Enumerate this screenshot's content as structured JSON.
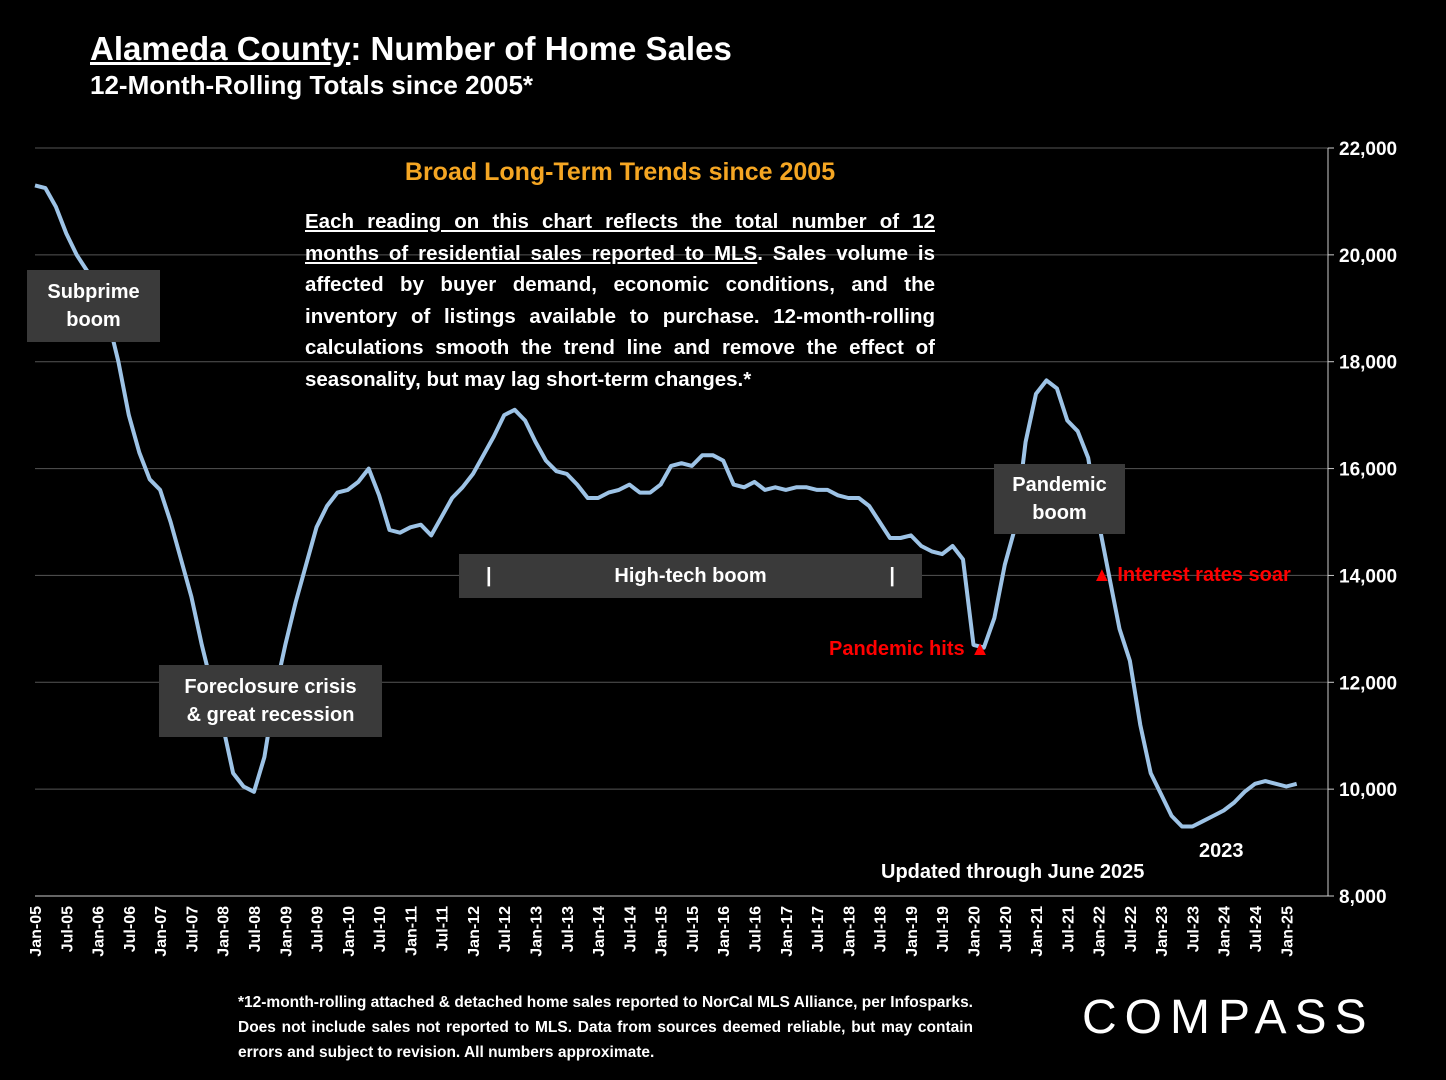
{
  "title": {
    "county": "Alameda County",
    "rest": ":  Number of Home Sales",
    "subtitle": "12-Month-Rolling Totals since 2005*"
  },
  "trend_box": {
    "heading": "Broad Long-Term Trends since 2005",
    "body_underlined": "Each reading on this chart reflects the total number of 12 months of residential sales reported to MLS",
    "body_rest": ". Sales volume is affected by buyer demand, economic conditions, and the inventory of listings available to purchase. 12-month-rolling calculations smooth the trend line and remove the effect of seasonality, but may lag short-term changes.*"
  },
  "annotations": {
    "subprime_line1": "Subprime",
    "subprime_line2": "boom",
    "foreclosure_line1": "Foreclosure crisis",
    "foreclosure_line2": "& great recession",
    "hightech": "High-tech boom",
    "hightech_bar_left": "|",
    "hightech_bar_right": "|",
    "pandemic_line1": "Pandemic",
    "pandemic_line2": "boom",
    "pandemic_hits": "Pandemic hits ▲",
    "interest_rates": "▲ Interest rates soar",
    "year_2023": "2023",
    "updated": "Updated through June 2025"
  },
  "footnote": "*12-month-rolling attached & detached home sales reported to NorCal MLS Alliance, per Infosparks. Does not include sales not reported to MLS. Data from sources deemed reliable, but may contain errors and subject to revision. All numbers approximate.",
  "logo": "COMPASS",
  "colors": {
    "line": "#9dc3e6",
    "accent": "#f5a623",
    "alert": "#ff0000",
    "box": "#3a3a3a"
  },
  "chart_data": {
    "type": "line",
    "ylim": [
      8000,
      22000
    ],
    "yticks": [
      8000,
      10000,
      12000,
      14000,
      16000,
      18000,
      20000,
      22000
    ],
    "ytick_labels": [
      "8,000",
      "10,000",
      "12,000",
      "14,000",
      "16,000",
      "18,000",
      "20,000",
      "22,000"
    ],
    "y_axis_side": "right",
    "grid": true,
    "x_tick_labels": [
      "Jan-05",
      "Jul-05",
      "Jan-06",
      "Jul-06",
      "Jan-07",
      "Jul-07",
      "Jan-08",
      "Jul-08",
      "Jan-09",
      "Jul-09",
      "Jan-10",
      "Jul-10",
      "Jan-11",
      "Jul-11",
      "Jan-12",
      "Jul-12",
      "Jan-13",
      "Jul-13",
      "Jan-14",
      "Jul-14",
      "Jan-15",
      "Jul-15",
      "Jan-16",
      "Jul-16",
      "Jan-17",
      "Jul-17",
      "Jan-18",
      "Jul-18",
      "Jan-19",
      "Jul-19",
      "Jan-20",
      "Jul-20",
      "Jan-21",
      "Jul-21",
      "Jan-22",
      "Jul-22",
      "Jan-23",
      "Jul-23",
      "Jan-24",
      "Jul-24",
      "Jan-25"
    ],
    "series": [
      {
        "points": [
          [
            "Jan-05",
            21300
          ],
          [
            "Mar-05",
            21250
          ],
          [
            "May-05",
            20900
          ],
          [
            "Jul-05",
            20400
          ],
          [
            "Sep-05",
            20000
          ],
          [
            "Nov-05",
            19700
          ],
          [
            "Jan-06",
            19200
          ],
          [
            "Mar-06",
            18800
          ],
          [
            "May-06",
            18000
          ],
          [
            "Jul-06",
            17000
          ],
          [
            "Sep-06",
            16300
          ],
          [
            "Nov-06",
            15800
          ],
          [
            "Jan-07",
            15600
          ],
          [
            "Mar-07",
            15000
          ],
          [
            "May-07",
            14300
          ],
          [
            "Jul-07",
            13600
          ],
          [
            "Sep-07",
            12700
          ],
          [
            "Nov-07",
            11900
          ],
          [
            "Jan-08",
            11200
          ],
          [
            "Mar-08",
            10300
          ],
          [
            "May-08",
            10050
          ],
          [
            "Jul-08",
            9950
          ],
          [
            "Sep-08",
            10600
          ],
          [
            "Nov-08",
            11800
          ],
          [
            "Jan-09",
            12700
          ],
          [
            "Mar-09",
            13500
          ],
          [
            "May-09",
            14200
          ],
          [
            "Jul-09",
            14900
          ],
          [
            "Sep-09",
            15300
          ],
          [
            "Nov-09",
            15550
          ],
          [
            "Jan-10",
            15600
          ],
          [
            "Mar-10",
            15750
          ],
          [
            "May-10",
            16000
          ],
          [
            "Jul-10",
            15500
          ],
          [
            "Sep-10",
            14850
          ],
          [
            "Nov-10",
            14800
          ],
          [
            "Jan-11",
            14900
          ],
          [
            "Mar-11",
            14950
          ],
          [
            "May-11",
            14750
          ],
          [
            "Jul-11",
            15100
          ],
          [
            "Sep-11",
            15450
          ],
          [
            "Nov-11",
            15650
          ],
          [
            "Jan-12",
            15900
          ],
          [
            "Mar-12",
            16250
          ],
          [
            "May-12",
            16600
          ],
          [
            "Jul-12",
            17000
          ],
          [
            "Sep-12",
            17100
          ],
          [
            "Nov-12",
            16900
          ],
          [
            "Jan-13",
            16500
          ],
          [
            "Mar-13",
            16150
          ],
          [
            "May-13",
            15950
          ],
          [
            "Jul-13",
            15900
          ],
          [
            "Sep-13",
            15700
          ],
          [
            "Nov-13",
            15450
          ],
          [
            "Jan-14",
            15450
          ],
          [
            "Mar-14",
            15550
          ],
          [
            "May-14",
            15600
          ],
          [
            "Jul-14",
            15700
          ],
          [
            "Sep-14",
            15550
          ],
          [
            "Nov-14",
            15550
          ],
          [
            "Jan-15",
            15700
          ],
          [
            "Mar-15",
            16050
          ],
          [
            "May-15",
            16100
          ],
          [
            "Jul-15",
            16050
          ],
          [
            "Sep-15",
            16250
          ],
          [
            "Nov-15",
            16250
          ],
          [
            "Jan-16",
            16150
          ],
          [
            "Mar-16",
            15700
          ],
          [
            "May-16",
            15650
          ],
          [
            "Jul-16",
            15750
          ],
          [
            "Sep-16",
            15600
          ],
          [
            "Nov-16",
            15650
          ],
          [
            "Jan-17",
            15600
          ],
          [
            "Mar-17",
            15650
          ],
          [
            "May-17",
            15650
          ],
          [
            "Jul-17",
            15600
          ],
          [
            "Sep-17",
            15600
          ],
          [
            "Nov-17",
            15500
          ],
          [
            "Jan-18",
            15450
          ],
          [
            "Mar-18",
            15450
          ],
          [
            "May-18",
            15300
          ],
          [
            "Jul-18",
            15000
          ],
          [
            "Sep-18",
            14700
          ],
          [
            "Nov-18",
            14700
          ],
          [
            "Jan-19",
            14750
          ],
          [
            "Mar-19",
            14550
          ],
          [
            "May-19",
            14450
          ],
          [
            "Jul-19",
            14400
          ],
          [
            "Sep-19",
            14550
          ],
          [
            "Nov-19",
            14300
          ],
          [
            "Jan-20",
            12700
          ],
          [
            "Mar-20",
            12650
          ],
          [
            "May-20",
            13200
          ],
          [
            "Jul-20",
            14200
          ],
          [
            "Sep-20",
            14900
          ],
          [
            "Nov-20",
            16500
          ],
          [
            "Jan-21",
            17400
          ],
          [
            "Mar-21",
            17650
          ],
          [
            "May-21",
            17500
          ],
          [
            "Jul-21",
            16900
          ],
          [
            "Sep-21",
            16700
          ],
          [
            "Nov-21",
            16200
          ],
          [
            "Jan-22",
            15000
          ],
          [
            "Mar-22",
            14000
          ],
          [
            "May-22",
            13000
          ],
          [
            "Jul-22",
            12400
          ],
          [
            "Sep-22",
            11200
          ],
          [
            "Nov-22",
            10300
          ],
          [
            "Jan-23",
            9900
          ],
          [
            "Mar-23",
            9500
          ],
          [
            "May-23",
            9300
          ],
          [
            "Jul-23",
            9300
          ],
          [
            "Sep-23",
            9400
          ],
          [
            "Nov-23",
            9500
          ],
          [
            "Jan-24",
            9600
          ],
          [
            "Mar-24",
            9750
          ],
          [
            "May-24",
            9950
          ],
          [
            "Jul-24",
            10100
          ],
          [
            "Sep-24",
            10150
          ],
          [
            "Nov-24",
            10100
          ],
          [
            "Jan-25",
            10050
          ],
          [
            "Mar-25",
            10100
          ]
        ]
      }
    ]
  }
}
